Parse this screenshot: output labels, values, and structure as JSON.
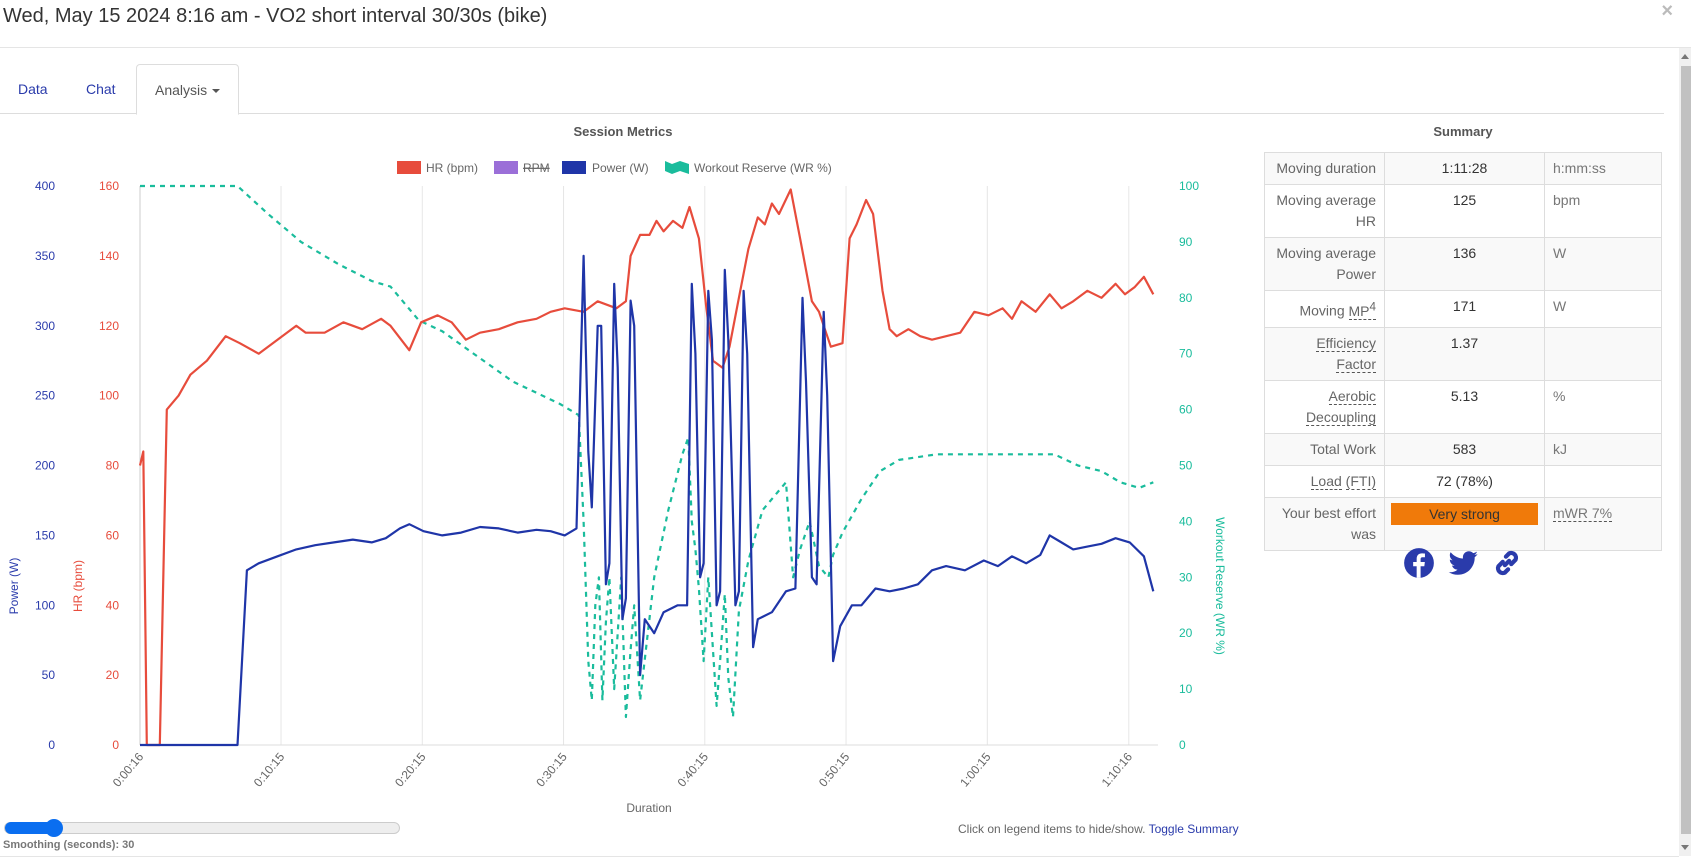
{
  "window": {
    "title": "Wed, May 15 2024 8:16 am - VO2 short interval 30/30s (bike)",
    "close_icon": "×"
  },
  "tabs": [
    {
      "label": "Data"
    },
    {
      "label": "Chat"
    },
    {
      "label": "Analysis",
      "active": true
    }
  ],
  "colors": {
    "hr": "#e74c3c",
    "rpm": "#9b6fd8",
    "power": "#1f35a8",
    "wr": "#1abc9c",
    "accent": "#2a3bab",
    "badge": "#f07a0a",
    "slider": "#0a6ef0"
  },
  "chart_data": {
    "type": "line",
    "title": "Session Metrics",
    "xlabel": "Duration",
    "x_ticks": [
      "0:00:16",
      "0:10:15",
      "0:20:15",
      "0:30:15",
      "0:40:15",
      "0:50:15",
      "1:00:15",
      "1:10:16"
    ],
    "x_tick_seconds": [
      16,
      615,
      1215,
      1815,
      2415,
      3015,
      3615,
      4216
    ],
    "xlim": [
      16,
      4340
    ],
    "legend": [
      {
        "name": "HR (bpm)",
        "hidden": false
      },
      {
        "name": "RPM",
        "hidden": true
      },
      {
        "name": "Power (W)",
        "hidden": false
      },
      {
        "name": "Workout Reserve (WR %)",
        "hidden": false
      }
    ],
    "legend_position": "top",
    "grid": true,
    "axes": {
      "power": {
        "label": "Power (W)",
        "ticks": [
          "0",
          "50",
          "100",
          "150",
          "200",
          "250",
          "300",
          "350",
          "400"
        ],
        "ylim": [
          0,
          400
        ]
      },
      "hr": {
        "label": "HR (bpm)",
        "ticks": [
          "0",
          "20",
          "40",
          "60",
          "80",
          "100",
          "120",
          "140",
          "160"
        ],
        "ylim": [
          0,
          160
        ]
      },
      "wr": {
        "label": "Workout Reserve (WR %)",
        "ticks": [
          "0",
          "10",
          "20",
          "30",
          "40",
          "50",
          "60",
          "70",
          "80",
          "90",
          "100"
        ],
        "ylim": [
          0,
          100
        ]
      }
    },
    "series": [
      {
        "name": "HR (bpm)",
        "axis": "hr",
        "points": [
          [
            16,
            80
          ],
          [
            30,
            84
          ],
          [
            45,
            0
          ],
          [
            100,
            0
          ],
          [
            130,
            96
          ],
          [
            180,
            100
          ],
          [
            230,
            106
          ],
          [
            300,
            110
          ],
          [
            380,
            117
          ],
          [
            440,
            115
          ],
          [
            520,
            112
          ],
          [
            600,
            116
          ],
          [
            680,
            120
          ],
          [
            720,
            118
          ],
          [
            800,
            118
          ],
          [
            880,
            121
          ],
          [
            960,
            119
          ],
          [
            1040,
            122
          ],
          [
            1080,
            120
          ],
          [
            1160,
            113
          ],
          [
            1210,
            121
          ],
          [
            1280,
            123
          ],
          [
            1340,
            121
          ],
          [
            1400,
            116
          ],
          [
            1460,
            118
          ],
          [
            1540,
            119
          ],
          [
            1620,
            121
          ],
          [
            1700,
            122
          ],
          [
            1760,
            124
          ],
          [
            1820,
            125
          ],
          [
            1900,
            124
          ],
          [
            1960,
            127
          ],
          [
            2040,
            125
          ],
          [
            2080,
            127
          ],
          [
            2100,
            140
          ],
          [
            2140,
            146
          ],
          [
            2180,
            146
          ],
          [
            2210,
            150
          ],
          [
            2240,
            147
          ],
          [
            2280,
            150
          ],
          [
            2320,
            148
          ],
          [
            2350,
            154
          ],
          [
            2390,
            145
          ],
          [
            2420,
            126
          ],
          [
            2450,
            110
          ],
          [
            2490,
            108
          ],
          [
            2520,
            114
          ],
          [
            2560,
            128
          ],
          [
            2600,
            142
          ],
          [
            2640,
            151
          ],
          [
            2670,
            149
          ],
          [
            2700,
            155
          ],
          [
            2730,
            152
          ],
          [
            2780,
            159
          ],
          [
            2820,
            145
          ],
          [
            2870,
            127
          ],
          [
            2900,
            124
          ],
          [
            2950,
            114
          ],
          [
            3000,
            115
          ],
          [
            3030,
            145
          ],
          [
            3060,
            149
          ],
          [
            3100,
            156
          ],
          [
            3130,
            152
          ],
          [
            3170,
            130
          ],
          [
            3200,
            119
          ],
          [
            3230,
            117
          ],
          [
            3280,
            119
          ],
          [
            3330,
            117
          ],
          [
            3380,
            116
          ],
          [
            3440,
            117
          ],
          [
            3500,
            118
          ],
          [
            3560,
            124
          ],
          [
            3620,
            123
          ],
          [
            3680,
            125
          ],
          [
            3720,
            122
          ],
          [
            3760,
            127
          ],
          [
            3820,
            124
          ],
          [
            3880,
            129
          ],
          [
            3930,
            125
          ],
          [
            3980,
            127
          ],
          [
            4040,
            130
          ],
          [
            4100,
            128
          ],
          [
            4160,
            132
          ],
          [
            4200,
            129
          ],
          [
            4240,
            131
          ],
          [
            4280,
            134
          ],
          [
            4320,
            129
          ]
        ]
      },
      {
        "name": "Power (W)",
        "axis": "power",
        "points": [
          [
            16,
            0
          ],
          [
            430,
            0
          ],
          [
            470,
            125
          ],
          [
            520,
            130
          ],
          [
            600,
            135
          ],
          [
            680,
            140
          ],
          [
            760,
            143
          ],
          [
            840,
            145
          ],
          [
            920,
            147
          ],
          [
            1000,
            145
          ],
          [
            1060,
            148
          ],
          [
            1120,
            155
          ],
          [
            1160,
            158
          ],
          [
            1220,
            153
          ],
          [
            1300,
            150
          ],
          [
            1380,
            152
          ],
          [
            1460,
            156
          ],
          [
            1540,
            155
          ],
          [
            1620,
            152
          ],
          [
            1700,
            154
          ],
          [
            1760,
            153
          ],
          [
            1820,
            150
          ],
          [
            1870,
            155
          ],
          [
            1900,
            350
          ],
          [
            1920,
            210
          ],
          [
            1935,
            170
          ],
          [
            1960,
            300
          ],
          [
            1975,
            300
          ],
          [
            1995,
            115
          ],
          [
            2010,
            130
          ],
          [
            2030,
            330
          ],
          [
            2045,
            270
          ],
          [
            2065,
            90
          ],
          [
            2080,
            105
          ],
          [
            2100,
            318
          ],
          [
            2115,
            300
          ],
          [
            2140,
            50
          ],
          [
            2160,
            90
          ],
          [
            2200,
            80
          ],
          [
            2240,
            95
          ],
          [
            2300,
            100
          ],
          [
            2340,
            100
          ],
          [
            2360,
            330
          ],
          [
            2375,
            280
          ],
          [
            2395,
            120
          ],
          [
            2410,
            130
          ],
          [
            2430,
            325
          ],
          [
            2445,
            290
          ],
          [
            2465,
            100
          ],
          [
            2480,
            110
          ],
          [
            2500,
            340
          ],
          [
            2515,
            290
          ],
          [
            2545,
            100
          ],
          [
            2560,
            110
          ],
          [
            2580,
            325
          ],
          [
            2595,
            280
          ],
          [
            2620,
            70
          ],
          [
            2640,
            90
          ],
          [
            2700,
            95
          ],
          [
            2760,
            110
          ],
          [
            2800,
            112
          ],
          [
            2830,
            320
          ],
          [
            2845,
            260
          ],
          [
            2870,
            120
          ],
          [
            2890,
            115
          ],
          [
            2920,
            310
          ],
          [
            2935,
            250
          ],
          [
            2960,
            60
          ],
          [
            2990,
            85
          ],
          [
            3040,
            100
          ],
          [
            3080,
            100
          ],
          [
            3140,
            112
          ],
          [
            3200,
            110
          ],
          [
            3260,
            112
          ],
          [
            3320,
            115
          ],
          [
            3380,
            125
          ],
          [
            3440,
            128
          ],
          [
            3520,
            125
          ],
          [
            3600,
            132
          ],
          [
            3660,
            128
          ],
          [
            3720,
            135
          ],
          [
            3780,
            130
          ],
          [
            3840,
            136
          ],
          [
            3880,
            150
          ],
          [
            3920,
            146
          ],
          [
            3980,
            140
          ],
          [
            4040,
            142
          ],
          [
            4100,
            144
          ],
          [
            4160,
            148
          ],
          [
            4220,
            145
          ],
          [
            4280,
            135
          ],
          [
            4320,
            110
          ]
        ]
      },
      {
        "name": "Workout Reserve (WR %)",
        "axis": "wr",
        "points": [
          [
            16,
            100
          ],
          [
            430,
            100
          ],
          [
            560,
            95
          ],
          [
            700,
            90
          ],
          [
            860,
            86
          ],
          [
            1000,
            83
          ],
          [
            1080,
            82
          ],
          [
            1140,
            79
          ],
          [
            1200,
            76
          ],
          [
            1300,
            74
          ],
          [
            1400,
            71
          ],
          [
            1500,
            68
          ],
          [
            1600,
            65
          ],
          [
            1700,
            63
          ],
          [
            1800,
            61
          ],
          [
            1880,
            59
          ],
          [
            1900,
            40
          ],
          [
            1920,
            15
          ],
          [
            1935,
            8
          ],
          [
            1950,
            25
          ],
          [
            1965,
            30
          ],
          [
            1980,
            8
          ],
          [
            1995,
            22
          ],
          [
            2010,
            30
          ],
          [
            2030,
            10
          ],
          [
            2045,
            20
          ],
          [
            2060,
            30
          ],
          [
            2080,
            5
          ],
          [
            2100,
            17
          ],
          [
            2115,
            25
          ],
          [
            2140,
            8
          ],
          [
            2200,
            30
          ],
          [
            2260,
            42
          ],
          [
            2320,
            52
          ],
          [
            2345,
            55
          ],
          [
            2360,
            40
          ],
          [
            2375,
            35
          ],
          [
            2390,
            28
          ],
          [
            2410,
            15
          ],
          [
            2430,
            30
          ],
          [
            2445,
            20
          ],
          [
            2465,
            7
          ],
          [
            2480,
            15
          ],
          [
            2500,
            27
          ],
          [
            2515,
            12
          ],
          [
            2535,
            5
          ],
          [
            2560,
            24
          ],
          [
            2600,
            33
          ],
          [
            2660,
            42
          ],
          [
            2720,
            45
          ],
          [
            2760,
            47
          ],
          [
            2790,
            30
          ],
          [
            2820,
            35
          ],
          [
            2860,
            40
          ],
          [
            2900,
            32
          ],
          [
            2940,
            30
          ],
          [
            2960,
            34
          ],
          [
            3000,
            38
          ],
          [
            3080,
            44
          ],
          [
            3160,
            49
          ],
          [
            3240,
            51
          ],
          [
            3400,
            52
          ],
          [
            3560,
            52
          ],
          [
            3700,
            52
          ],
          [
            3800,
            52
          ],
          [
            3900,
            52
          ],
          [
            4000,
            50
          ],
          [
            4100,
            49
          ],
          [
            4180,
            47
          ],
          [
            4260,
            46
          ],
          [
            4320,
            47
          ]
        ]
      }
    ]
  },
  "summary": {
    "title": "Summary",
    "rows": [
      {
        "label": "Moving duration",
        "value": "1:11:28",
        "unit": "h:mm:ss"
      },
      {
        "label": "Moving average HR",
        "value": "125",
        "unit": "bpm"
      },
      {
        "label": "Moving average Power",
        "value": "136",
        "unit": "W"
      },
      {
        "label_prefix": "Moving ",
        "label_term": "MP",
        "label_sup": "4",
        "value": "171",
        "unit": "W"
      },
      {
        "label_term": "Efficiency Factor",
        "value": "1.37",
        "unit": ""
      },
      {
        "label_term_1": "Aerobic",
        "label_term_2": "Decoupling",
        "value": "5.13",
        "unit": "%"
      },
      {
        "label": "Total Work",
        "value": "583",
        "unit": "kJ"
      },
      {
        "label_term_1": "Load",
        "label_term_2": "(FTI)",
        "value": "72 (78%)",
        "unit": ""
      },
      {
        "label": "Your best effort was",
        "value": "Very strong",
        "unit": "mWR 7%"
      }
    ],
    "share_icons": [
      "facebook-icon",
      "twitter-icon",
      "link-icon"
    ]
  },
  "footer": {
    "smoothing_label": "Smoothing (seconds): 30",
    "smoothing_value": 30,
    "smoothing_max": 300,
    "hint": "Click on legend items to hide/show.",
    "toggle_summary": "Toggle Summary"
  }
}
